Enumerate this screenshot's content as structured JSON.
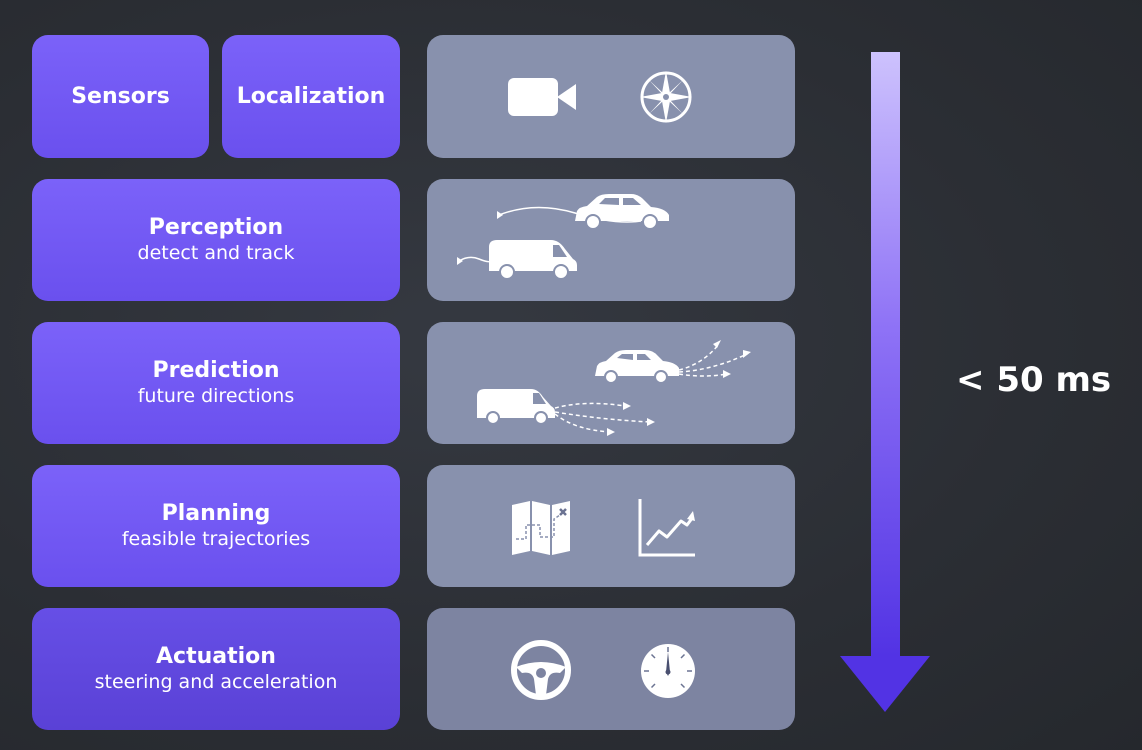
{
  "stages": [
    {
      "title": "Sensors",
      "subtitle": ""
    },
    {
      "title": "Localization",
      "subtitle": ""
    },
    {
      "title": "Perception",
      "subtitle": "detect and track"
    },
    {
      "title": "Prediction",
      "subtitle": "future directions"
    },
    {
      "title": "Planning",
      "subtitle": "feasible trajectories"
    },
    {
      "title": "Actuation",
      "subtitle": "steering and acceleration"
    }
  ],
  "latency_label": "< 50 ms",
  "icons": {
    "sensors": [
      "video-camera-icon",
      "compass-icon"
    ],
    "perception": [
      "sedan-tracked-icon",
      "van-tracked-icon"
    ],
    "prediction": [
      "sedan-predicted-paths-icon",
      "van-predicted-paths-icon"
    ],
    "planning": [
      "map-route-icon",
      "rising-chart-icon"
    ],
    "actuation": [
      "steering-wheel-icon",
      "speedometer-dial-icon"
    ]
  },
  "colors": {
    "stage": "#7b62f9",
    "panel": "#8891ad",
    "arrow_top": "#c9bdfd",
    "arrow_bottom": "#5a38e6",
    "background": "#2b2e34"
  }
}
